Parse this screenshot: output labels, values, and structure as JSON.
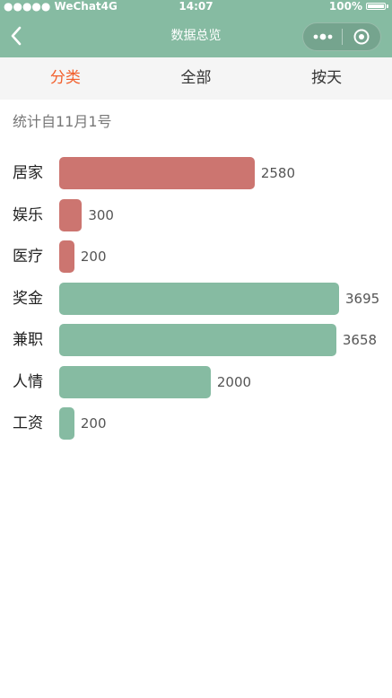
{
  "status_bar": {
    "carrier": "●●●●● WeChat4G",
    "time": "14:07",
    "battery": "100%"
  },
  "nav": {
    "title": "数据总览"
  },
  "tabs": [
    {
      "label": "分类",
      "active": true
    },
    {
      "label": "全部",
      "active": false
    },
    {
      "label": "按天",
      "active": false
    }
  ],
  "subtitle": "统计自11月1号",
  "colors": {
    "theme": "#86bba2",
    "expense": "#cc7570",
    "income": "#86bba2",
    "active_tab": "#f25f2c"
  },
  "chart_data": {
    "type": "bar",
    "orientation": "horizontal",
    "categories": [
      "居家",
      "娱乐",
      "医疗",
      "奖金",
      "兼职",
      "人情",
      "工资"
    ],
    "values": [
      2580,
      300,
      200,
      3695,
      3658,
      2000,
      200
    ],
    "labels": [
      "2580",
      "300",
      "200",
      "3695",
      "3658",
      "2000",
      "200"
    ],
    "groups": [
      "expense",
      "expense",
      "expense",
      "income",
      "income",
      "income",
      "income"
    ],
    "title": "",
    "xlabel": "",
    "ylabel": ""
  }
}
